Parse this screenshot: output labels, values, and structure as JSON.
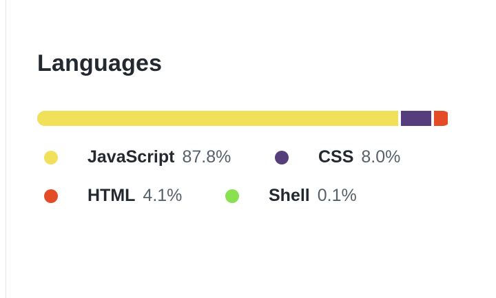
{
  "section": {
    "title": "Languages"
  },
  "languages": [
    {
      "name": "JavaScript",
      "percent_label": "87.8%",
      "percent": 87.8,
      "color": "#f1e05a"
    },
    {
      "name": "CSS",
      "percent_label": "8.0%",
      "percent": 8.0,
      "color": "#563d7c"
    },
    {
      "name": "HTML",
      "percent_label": "4.1%",
      "percent": 4.1,
      "color": "#e34c26"
    },
    {
      "name": "Shell",
      "percent_label": "0.1%",
      "percent": 0.1,
      "color": "#89e051"
    }
  ]
}
